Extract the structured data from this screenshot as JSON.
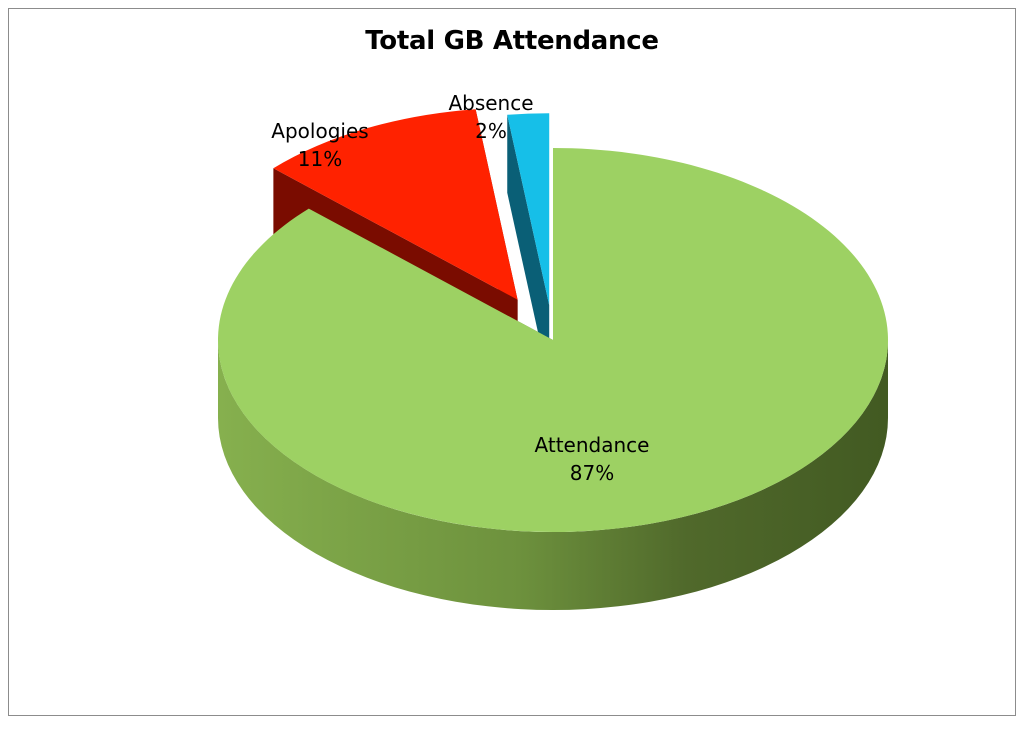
{
  "chart_data": {
    "type": "pie",
    "title": "Total GB Attendance",
    "style": "3d-exploded",
    "categories": [
      "Attendance",
      "Apologies",
      "Absence"
    ],
    "values": [
      87,
      11,
      2
    ],
    "percent_labels": [
      "87%",
      "11%",
      "2%"
    ],
    "colors": [
      "#9dd163",
      "#ff2200",
      "#16bfe8"
    ],
    "side_colors": [
      "#5e7e34",
      "#7a0c00",
      "#0a5f76"
    ],
    "legend": "none",
    "data_labels": "category-and-percent"
  }
}
